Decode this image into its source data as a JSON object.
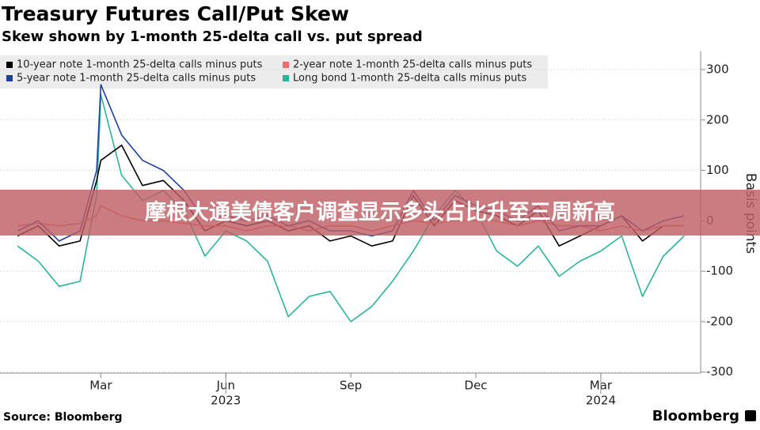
{
  "chart_data": {
    "type": "line",
    "title": "Treasury Futures Call/Put Skew",
    "subtitle": "Skew shown by 1-month 25-delta call vs. put spread",
    "y_label": "Basis points",
    "source": "Source: Bloomberg",
    "brand": "Bloomberg",
    "banner": "摩根大通美债客户调查显示多头占比升至三周新高",
    "x": [
      0,
      0.5,
      1,
      1.5,
      1.9,
      2,
      2.5,
      3,
      3.5,
      4,
      4.5,
      5,
      5.5,
      6,
      6.5,
      7,
      7.5,
      8,
      8.5,
      9,
      9.5,
      10,
      10.5,
      11,
      11.5,
      12,
      12.5,
      13,
      13.5,
      14,
      14.5,
      15,
      15.5,
      16
    ],
    "xlim": [
      -0.42,
      16.3
    ],
    "xticks": [
      {
        "value": 2,
        "label": "Mar"
      },
      {
        "value": 5,
        "label": "Jun"
      },
      {
        "value": 8,
        "label": "Sep"
      },
      {
        "value": 11,
        "label": "Dec"
      },
      {
        "value": 14,
        "label": "Mar"
      }
    ],
    "year_labels": [
      {
        "value": 5,
        "label": "2023"
      },
      {
        "value": 14,
        "label": "2024"
      }
    ],
    "ylim": [
      -302,
      336
    ],
    "yticks": [
      300,
      200,
      100,
      0,
      -100,
      -200,
      -300
    ],
    "grid": true,
    "legend": "top-left",
    "series": [
      {
        "name": "10-year note 1-month 25-delta calls minus puts",
        "color": "#000000",
        "values": [
          -30,
          -10,
          -50,
          -40,
          80,
          120,
          150,
          70,
          80,
          40,
          -20,
          0,
          -10,
          0,
          -20,
          -10,
          -40,
          -30,
          -50,
          -40,
          50,
          -10,
          40,
          20,
          10,
          -10,
          20,
          -50,
          -30,
          -10,
          10,
          -40,
          -10,
          -10
        ]
      },
      {
        "name": "2-year note 1-month 25-delta calls minus puts",
        "color": "#e8706b",
        "values": [
          -10,
          -5,
          -10,
          -5,
          10,
          30,
          10,
          0,
          0,
          -5,
          -10,
          -10,
          -20,
          -10,
          -10,
          -20,
          -10,
          -10,
          -20,
          -10,
          0,
          -5,
          0,
          0,
          0,
          -10,
          0,
          -10,
          -10,
          -20,
          -10,
          -20,
          -10,
          -10
        ]
      },
      {
        "name": "5-year note 1-month 25-delta calls minus puts",
        "color": "#1f3f9f",
        "values": [
          -20,
          0,
          -40,
          -20,
          100,
          270,
          170,
          120,
          100,
          60,
          0,
          10,
          0,
          10,
          -10,
          0,
          -20,
          -20,
          -30,
          -20,
          60,
          0,
          50,
          30,
          20,
          0,
          30,
          -20,
          -10,
          -10,
          10,
          -20,
          0,
          10
        ]
      },
      {
        "name": "Long bond 1-month 25-delta calls minus puts",
        "color": "#2ab59a",
        "values": [
          -50,
          -80,
          -130,
          -120,
          50,
          250,
          90,
          40,
          60,
          20,
          -70,
          -20,
          -40,
          -80,
          -190,
          -150,
          -140,
          -200,
          -170,
          -120,
          -60,
          10,
          60,
          20,
          -60,
          -90,
          -50,
          -110,
          -80,
          -60,
          -30,
          -150,
          -70,
          -30
        ]
      }
    ]
  }
}
